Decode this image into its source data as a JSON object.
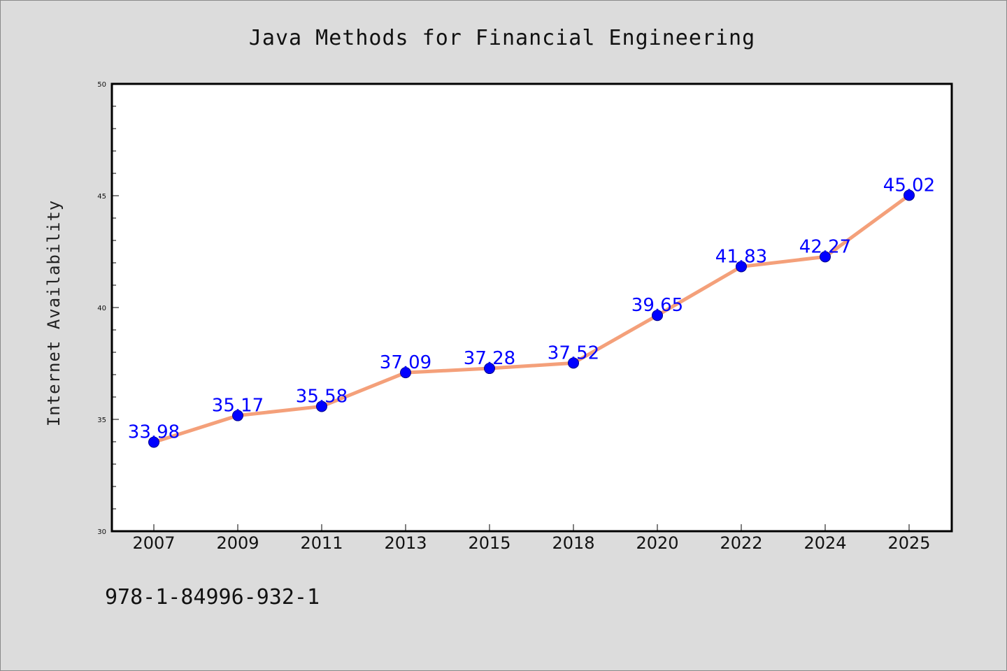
{
  "chart_data": {
    "type": "line",
    "title": "Java Methods for Financial Engineering",
    "xlabel": "",
    "ylabel": "Internet Availability",
    "categories": [
      "2007",
      "2009",
      "2011",
      "2013",
      "2015",
      "2018",
      "2020",
      "2022",
      "2024",
      "2025"
    ],
    "values": [
      33.98,
      35.17,
      35.58,
      37.09,
      37.28,
      37.52,
      39.65,
      41.83,
      42.27,
      45.02
    ],
    "data_labels": [
      "33.98",
      "35.17",
      "35.58",
      "37.09",
      "37.28",
      "37.52",
      "39.65",
      "41.83",
      "42.27",
      "45.02"
    ],
    "ylim": [
      30,
      50
    ],
    "yticks": [
      "30",
      "35",
      "40",
      "45",
      "50"
    ],
    "grid": false,
    "colors": {
      "line": "#f4a07a",
      "marker": "#0000ff",
      "labels": "#0000ff",
      "background": "#dcdcdc",
      "plot_bg": "#ffffff"
    }
  },
  "footer": {
    "isbn": "978-1-84996-932-1"
  }
}
